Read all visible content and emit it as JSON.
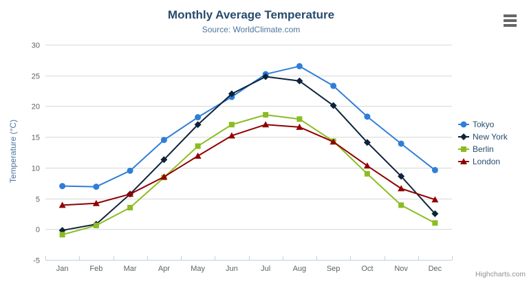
{
  "header": {
    "title": "Monthly Average Temperature",
    "subtitle": "Source: WorldClimate.com"
  },
  "export_menu": {
    "icon": "hamburger-icon",
    "color": "#666666"
  },
  "credits": {
    "label": "Highcharts.com",
    "color": "#909090"
  },
  "chart_data": {
    "type": "line",
    "title": "Monthly Average Temperature",
    "subtitle": "Source: WorldClimate.com",
    "categories": [
      "Jan",
      "Feb",
      "Mar",
      "Apr",
      "May",
      "Jun",
      "Jul",
      "Aug",
      "Sep",
      "Oct",
      "Nov",
      "Dec"
    ],
    "series": [
      {
        "name": "Tokyo",
        "color": "#2f7ed8",
        "marker": "circle",
        "values": [
          7.0,
          6.9,
          9.5,
          14.5,
          18.2,
          21.5,
          25.2,
          26.5,
          23.3,
          18.3,
          13.9,
          9.6
        ]
      },
      {
        "name": "New York",
        "color": "#0d233a",
        "marker": "diamond",
        "values": [
          -0.2,
          0.8,
          5.7,
          11.3,
          17.0,
          22.0,
          24.8,
          24.1,
          20.1,
          14.1,
          8.6,
          2.5
        ]
      },
      {
        "name": "Berlin",
        "color": "#8bbc21",
        "marker": "square",
        "values": [
          -0.9,
          0.6,
          3.5,
          8.4,
          13.5,
          17.0,
          18.6,
          17.9,
          14.3,
          9.0,
          3.9,
          1.0
        ]
      },
      {
        "name": "London",
        "color": "#910000",
        "marker": "triangle",
        "values": [
          3.9,
          4.2,
          5.7,
          8.5,
          11.9,
          15.2,
          17.0,
          16.6,
          14.2,
          10.3,
          6.6,
          4.8
        ]
      }
    ],
    "xlabel": "",
    "ylabel": "Temperature (°C)",
    "ylim": [
      -5,
      30
    ],
    "ytick_step": 5,
    "grid": true,
    "legend_position": "right",
    "styles": {
      "grid_color": "#d8d8d8",
      "axis_line_color": "#c0d0e0",
      "axis_label_color": "#606060",
      "axis_title_color": "#4d759e",
      "legend_text_color": "#274b6d"
    }
  }
}
